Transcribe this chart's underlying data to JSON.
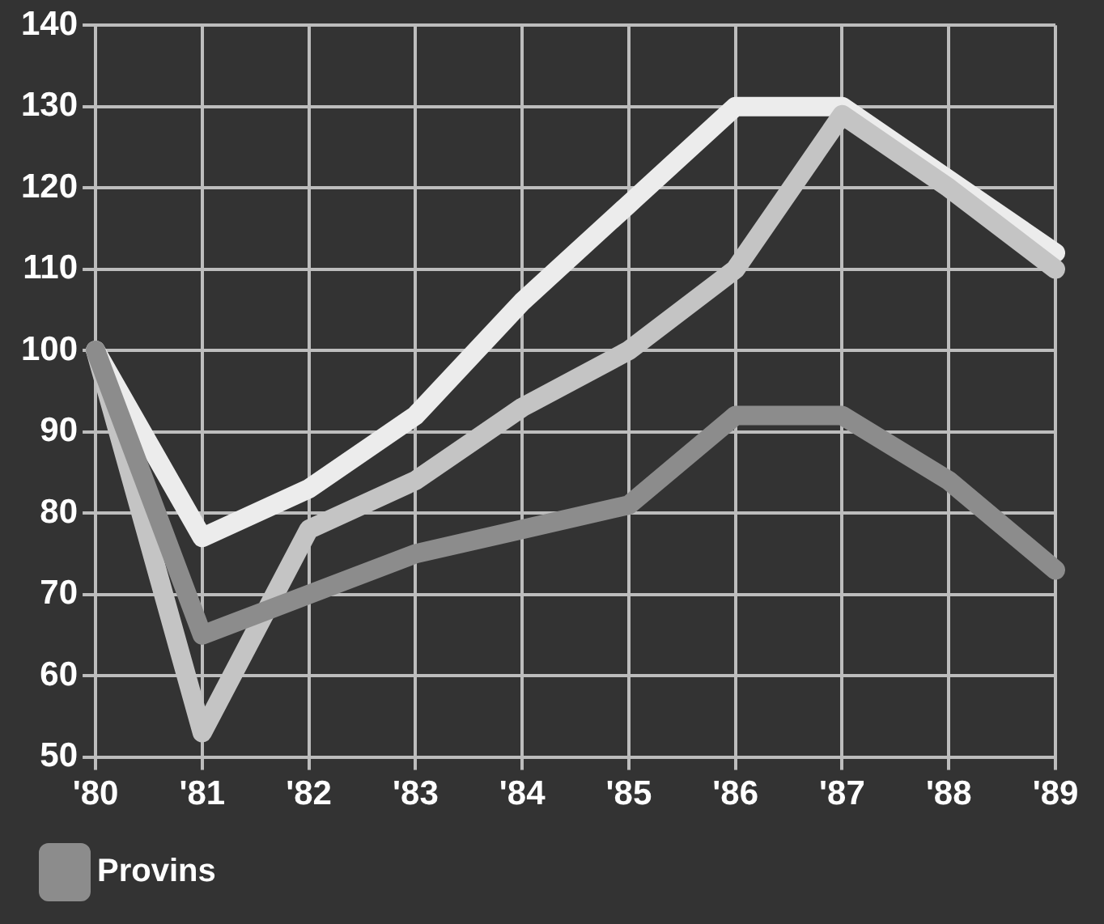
{
  "chart_data": {
    "type": "line",
    "categories": [
      "'80",
      "'81",
      "'82",
      "'83",
      "'84",
      "'85",
      "'86",
      "'87",
      "'88",
      "'89"
    ],
    "series": [
      {
        "color": "#8c8c8c",
        "name": "Provins",
        "values": [
          100,
          65,
          70,
          75,
          78,
          81,
          92,
          92,
          84,
          73
        ]
      },
      {
        "color": "#c4c4c4",
        "values": [
          100,
          53,
          78,
          84,
          93,
          100,
          110,
          129,
          120,
          110
        ]
      },
      {
        "color": "#ececec",
        "values": [
          100,
          77,
          83,
          92,
          106,
          118,
          130,
          130,
          121,
          112
        ]
      }
    ],
    "ylim": [
      50,
      140
    ],
    "yticks": [
      50,
      60,
      70,
      80,
      90,
      100,
      110,
      120,
      130,
      140
    ],
    "grid": true,
    "legend": "bottom",
    "marker": "none",
    "line_style": "solid"
  }
}
